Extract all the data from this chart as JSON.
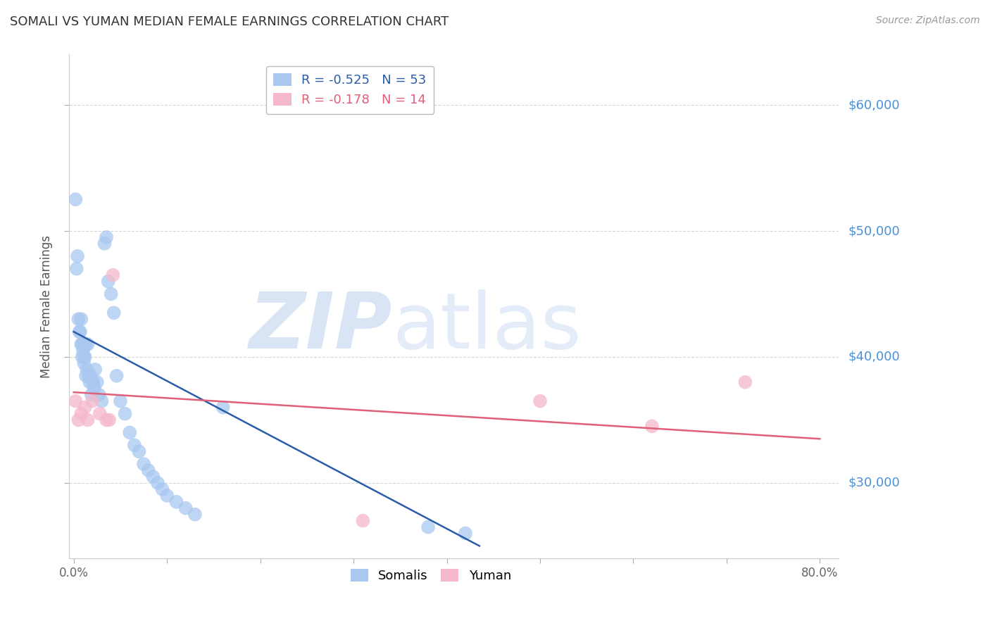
{
  "title": "SOMALI VS YUMAN MEDIAN FEMALE EARNINGS CORRELATION CHART",
  "source": "Source: ZipAtlas.com",
  "ylabel": "Median Female Earnings",
  "xlim": [
    -0.005,
    0.82
  ],
  "ylim": [
    24000,
    64000
  ],
  "yticks": [
    30000,
    40000,
    50000,
    60000
  ],
  "ytick_labels": [
    "$30,000",
    "$40,000",
    "$50,000",
    "$60,000"
  ],
  "xticks": [
    0.0,
    0.1,
    0.2,
    0.3,
    0.4,
    0.5,
    0.6,
    0.7,
    0.8
  ],
  "xtick_labels": [
    "0.0%",
    "",
    "",
    "",
    "",
    "",
    "",
    "",
    "80.0%"
  ],
  "somali_color": "#a8c8f0",
  "yuman_color": "#f5b8cb",
  "somali_line_color": "#2a5caa",
  "yuman_line_color": "#e0607a",
  "R_somali": -0.525,
  "N_somali": 53,
  "R_yuman": -0.178,
  "N_yuman": 14,
  "background_color": "#ffffff",
  "grid_color": "#cccccc",
  "tick_label_color": "#4a90d9",
  "watermark_zip": "ZIP",
  "watermark_atlas": "atlas",
  "watermark_zip_color": "#c5d8f0",
  "watermark_atlas_color": "#c5d8f0",
  "legend_label_somali": "Somalis",
  "legend_label_yuman": "Yuman",
  "somali_line_x0": 0.0,
  "somali_line_y0": 42000,
  "somali_line_x1": 0.435,
  "somali_line_y1": 25000,
  "yuman_line_x0": 0.0,
  "yuman_line_y0": 37200,
  "yuman_line_x1": 0.8,
  "yuman_line_y1": 33500,
  "somali_x": [
    0.002,
    0.003,
    0.004,
    0.005,
    0.006,
    0.007,
    0.008,
    0.008,
    0.009,
    0.009,
    0.01,
    0.01,
    0.011,
    0.011,
    0.012,
    0.013,
    0.013,
    0.014,
    0.015,
    0.016,
    0.017,
    0.018,
    0.019,
    0.02,
    0.021,
    0.022,
    0.023,
    0.025,
    0.027,
    0.03,
    0.033,
    0.035,
    0.037,
    0.04,
    0.043,
    0.046,
    0.05,
    0.055,
    0.06,
    0.065,
    0.07,
    0.075,
    0.08,
    0.085,
    0.09,
    0.095,
    0.1,
    0.11,
    0.12,
    0.13,
    0.16,
    0.38,
    0.42
  ],
  "somali_y": [
    52500,
    47000,
    48000,
    43000,
    42000,
    42000,
    43000,
    41000,
    41000,
    40000,
    41000,
    40500,
    40000,
    39500,
    40000,
    41000,
    38500,
    39000,
    41000,
    38500,
    38000,
    38500,
    37000,
    38000,
    38000,
    37500,
    39000,
    38000,
    37000,
    36500,
    49000,
    49500,
    46000,
    45000,
    43500,
    38500,
    36500,
    35500,
    34000,
    33000,
    32500,
    31500,
    31000,
    30500,
    30000,
    29500,
    29000,
    28500,
    28000,
    27500,
    36000,
    26500,
    26000
  ],
  "yuman_x": [
    0.002,
    0.005,
    0.008,
    0.012,
    0.015,
    0.02,
    0.028,
    0.035,
    0.042,
    0.31,
    0.5,
    0.62,
    0.72,
    0.038
  ],
  "yuman_y": [
    36500,
    35000,
    35500,
    36000,
    35000,
    36500,
    35500,
    35000,
    46500,
    27000,
    36500,
    34500,
    38000,
    35000
  ]
}
